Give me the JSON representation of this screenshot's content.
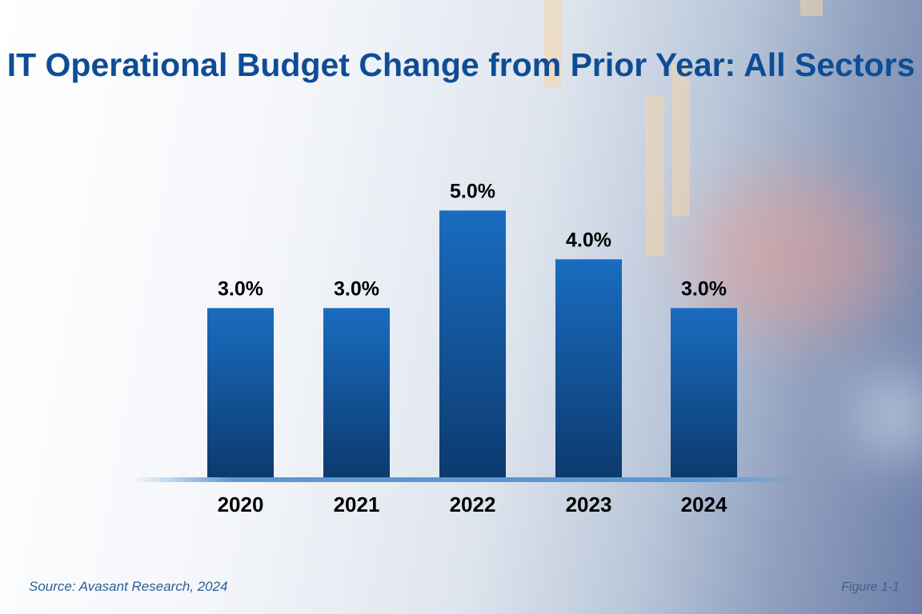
{
  "chart_data": {
    "type": "bar",
    "title": "IT Operational Budget Change from Prior Year: All Sectors",
    "categories": [
      "2020",
      "2021",
      "2022",
      "2023",
      "2024"
    ],
    "values": [
      3.0,
      3.0,
      5.0,
      4.0,
      3.0
    ],
    "data_labels": [
      "3.0%",
      "3.0%",
      "5.0%",
      "4.0%",
      "3.0%"
    ],
    "xlabel": "",
    "ylabel": "",
    "grid": false,
    "bar_color_top": "#1a6cc0",
    "bar_color_bottom": "#0c3a6e",
    "title_color": "#0e4d96"
  },
  "footer": {
    "source": "Source: Avasant Research, 2024",
    "figure": "Figure 1-1"
  }
}
